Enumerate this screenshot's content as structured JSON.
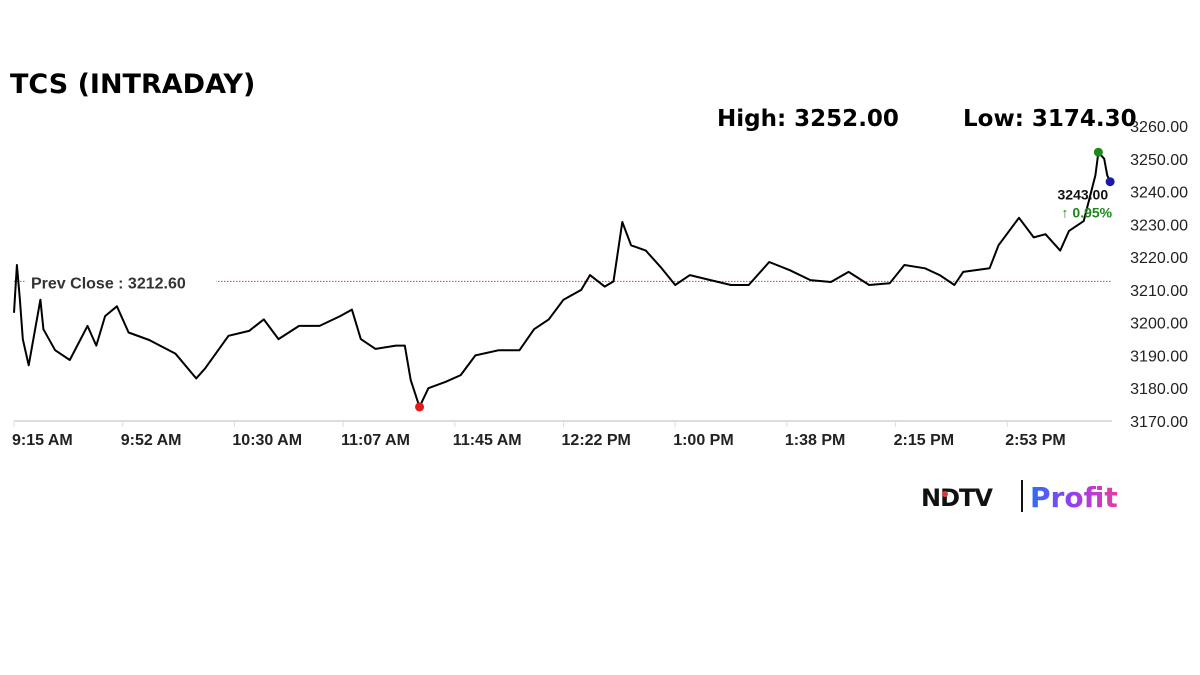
{
  "chart_data": {
    "type": "line",
    "title": "TCS (INTRADAY)",
    "high_label": "High: 3252.00",
    "low_label": "Low: 3174.30",
    "prev_close_label": "Prev Close : 3212.60",
    "prev_close": 3212.6,
    "last_price_label": "3243.00",
    "change_label": "↑ 0.95%",
    "high": 3252.0,
    "low": 3174.3,
    "last": 3243.0,
    "ylim": [
      3170,
      3260
    ],
    "xlim": [
      "09:15",
      "15:30"
    ],
    "yticks": [
      "3170.00",
      "3180.00",
      "3190.00",
      "3200.00",
      "3210.00",
      "3220.00",
      "3230.00",
      "3240.00",
      "3250.00",
      "3260.00"
    ],
    "xticks": [
      {
        "time": "09:15",
        "label": "9:15 AM"
      },
      {
        "time": "09:52",
        "label": "9:52 AM"
      },
      {
        "time": "10:30",
        "label": "10:30 AM"
      },
      {
        "time": "11:07",
        "label": "11:07 AM"
      },
      {
        "time": "11:45",
        "label": "11:45 AM"
      },
      {
        "time": "12:22",
        "label": "12:22 PM"
      },
      {
        "time": "13:00",
        "label": "1:00 PM"
      },
      {
        "time": "13:38",
        "label": "1:38 PM"
      },
      {
        "time": "14:15",
        "label": "2:15 PM"
      },
      {
        "time": "14:53",
        "label": "2:53 PM"
      }
    ],
    "grid": false,
    "colors": {
      "line": "#000000",
      "prev_close": "#e53935",
      "high_marker": "#1b8a1b",
      "low_marker": "#e81818",
      "last_marker": "#1a1aa8",
      "change": "#1b8a1b"
    },
    "series": [
      {
        "points": [
          [
            "09:15",
            3203.0
          ],
          [
            "09:16",
            3217.6
          ],
          [
            "09:17",
            3207
          ],
          [
            "09:18",
            3195
          ],
          [
            "09:20",
            3187
          ],
          [
            "09:24",
            3207
          ],
          [
            "09:25",
            3198
          ],
          [
            "09:29",
            3191.6
          ],
          [
            "09:34",
            3188.6
          ],
          [
            "09:40",
            3199
          ],
          [
            "09:43",
            3193
          ],
          [
            "09:46",
            3202
          ],
          [
            "09:50",
            3205
          ],
          [
            "09:54",
            3197
          ],
          [
            "10:01",
            3194.7
          ],
          [
            "10:10",
            3190.5
          ],
          [
            "10:17",
            3183
          ],
          [
            "10:20",
            3186
          ],
          [
            "10:28",
            3196
          ],
          [
            "10:35",
            3197.5
          ],
          [
            "10:40",
            3201
          ],
          [
            "10:45",
            3195
          ],
          [
            "10:52",
            3199
          ],
          [
            "10:59",
            3199
          ],
          [
            "11:06",
            3202
          ],
          [
            "11:10",
            3204
          ],
          [
            "11:13",
            3195
          ],
          [
            "11:18",
            3192
          ],
          [
            "11:25",
            3193
          ],
          [
            "11:28",
            3193
          ],
          [
            "11:30",
            3182.5
          ],
          [
            "11:33",
            3174.3
          ],
          [
            "11:36",
            3180
          ],
          [
            "11:42",
            3182
          ],
          [
            "11:47",
            3184
          ],
          [
            "11:52",
            3190
          ],
          [
            "12:00",
            3191.6
          ],
          [
            "12:07",
            3191.6
          ],
          [
            "12:12",
            3198
          ],
          [
            "12:17",
            3201
          ],
          [
            "12:22",
            3207
          ],
          [
            "12:28",
            3210
          ],
          [
            "12:31",
            3214.5
          ],
          [
            "12:36",
            3211
          ],
          [
            "12:39",
            3212.6
          ],
          [
            "12:42",
            3230.7
          ],
          [
            "12:45",
            3223.6
          ],
          [
            "12:50",
            3222
          ],
          [
            "12:55",
            3217
          ],
          [
            "13:00",
            3211.5
          ],
          [
            "13:05",
            3214.5
          ],
          [
            "13:12",
            3213
          ],
          [
            "13:19",
            3211.5
          ],
          [
            "13:25",
            3211.5
          ],
          [
            "13:32",
            3218.5
          ],
          [
            "13:39",
            3216
          ],
          [
            "13:46",
            3213
          ],
          [
            "13:53",
            3212.4
          ],
          [
            "13:59",
            3215.5
          ],
          [
            "14:06",
            3211.5
          ],
          [
            "14:13",
            3212
          ],
          [
            "14:18",
            3217.6
          ],
          [
            "14:25",
            3216.6
          ],
          [
            "14:30",
            3214.5
          ],
          [
            "14:35",
            3211.5
          ],
          [
            "14:38",
            3215.5
          ],
          [
            "14:47",
            3216.6
          ],
          [
            "14:50",
            3223.6
          ],
          [
            "14:57",
            3232
          ],
          [
            "15:02",
            3226
          ],
          [
            "15:06",
            3227
          ],
          [
            "15:11",
            3222
          ],
          [
            "15:14",
            3228
          ],
          [
            "15:19",
            3231
          ],
          [
            "15:23",
            3245
          ],
          [
            "15:24",
            3252
          ],
          [
            "15:26",
            3250
          ],
          [
            "15:27",
            3245
          ],
          [
            "15:28",
            3243
          ]
        ]
      }
    ]
  },
  "branding": {
    "logo_text_left": "NDTV",
    "logo_text_right": "Profit"
  }
}
